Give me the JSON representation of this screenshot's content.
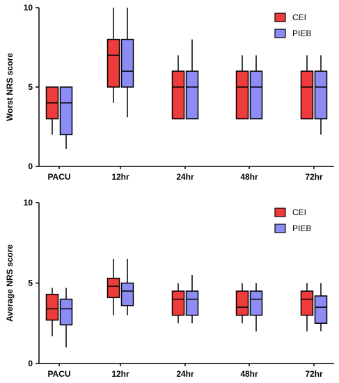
{
  "chart_data": [
    {
      "type": "box",
      "ylabel": "Worst NRS score",
      "ylim": [
        0,
        10
      ],
      "yticks": [
        "0",
        "5",
        "10"
      ],
      "categories": [
        "PACU",
        "12hr",
        "24hr",
        "48hr",
        "72hr"
      ],
      "legend": {
        "position": "top-right",
        "entries": [
          "CEI",
          "PIEB"
        ]
      },
      "series": [
        {
          "name": "CEI",
          "color": "#ee3b3b",
          "boxes": [
            {
              "min": 2,
              "q1": 3,
              "median": 4,
              "q3": 5,
              "max": 5
            },
            {
              "min": 4,
              "q1": 5,
              "median": 7,
              "q3": 8,
              "max": 10
            },
            {
              "min": 3,
              "q1": 3,
              "median": 5,
              "q3": 6,
              "max": 7
            },
            {
              "min": 3,
              "q1": 3,
              "median": 5,
              "q3": 6,
              "max": 7
            },
            {
              "min": 3,
              "q1": 3,
              "median": 5,
              "q3": 6,
              "max": 7
            }
          ]
        },
        {
          "name": "PIEB",
          "color": "#8c8cf5",
          "boxes": [
            {
              "min": 1.1,
              "q1": 2,
              "median": 4,
              "q3": 5,
              "max": 5
            },
            {
              "min": 3.1,
              "q1": 5,
              "median": 6,
              "q3": 8,
              "max": 10
            },
            {
              "min": 3,
              "q1": 3,
              "median": 5,
              "q3": 6,
              "max": 8
            },
            {
              "min": 3,
              "q1": 3,
              "median": 5,
              "q3": 6,
              "max": 7
            },
            {
              "min": 2,
              "q1": 3,
              "median": 5,
              "q3": 6,
              "max": 7
            }
          ]
        }
      ]
    },
    {
      "type": "box",
      "ylabel": "Average NRS score",
      "ylim": [
        0,
        10
      ],
      "yticks": [
        "0",
        "5",
        "10"
      ],
      "categories": [
        "PACU",
        "12hr",
        "24hr",
        "48hr",
        "72hr"
      ],
      "legend": {
        "position": "top-right",
        "entries": [
          "CEI",
          "PIEB"
        ]
      },
      "series": [
        {
          "name": "CEI",
          "color": "#ee3b3b",
          "boxes": [
            {
              "min": 1.7,
              "q1": 2.7,
              "median": 3.4,
              "q3": 4.3,
              "max": 4.7
            },
            {
              "min": 3,
              "q1": 4.1,
              "median": 4.8,
              "q3": 5.3,
              "max": 6.5
            },
            {
              "min": 2.5,
              "q1": 3,
              "median": 4,
              "q3": 4.5,
              "max": 5
            },
            {
              "min": 2.5,
              "q1": 3,
              "median": 3.5,
              "q3": 4.5,
              "max": 5
            },
            {
              "min": 2,
              "q1": 3,
              "median": 4,
              "q3": 4.5,
              "max": 5
            }
          ]
        },
        {
          "name": "PIEB",
          "color": "#8c8cf5",
          "boxes": [
            {
              "min": 1,
              "q1": 2.4,
              "median": 3.4,
              "q3": 4,
              "max": 4.7
            },
            {
              "min": 3,
              "q1": 3.6,
              "median": 4.5,
              "q3": 5,
              "max": 6.5
            },
            {
              "min": 2.5,
              "q1": 3,
              "median": 4,
              "q3": 4.5,
              "max": 5.5
            },
            {
              "min": 2,
              "q1": 3,
              "median": 4,
              "q3": 4.5,
              "max": 5
            },
            {
              "min": 2,
              "q1": 2.5,
              "median": 3.5,
              "q3": 4.2,
              "max": 5
            }
          ]
        }
      ]
    }
  ]
}
